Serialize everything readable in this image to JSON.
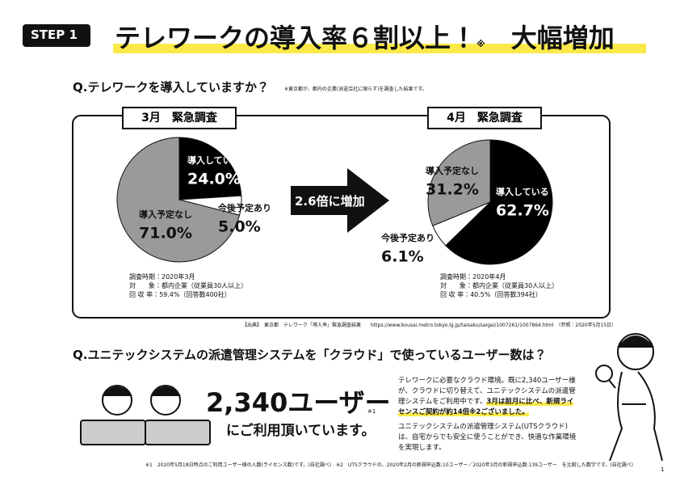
{
  "header": {
    "step": "STEP 1",
    "title": "テレワークの導入率６割以上！",
    "title_note": "※",
    "title_suffix": "大幅増加"
  },
  "q1": {
    "question": "Q.テレワークを導入していますか？",
    "note": "※東京都が、都内の企業(派遣会社に限らず)を調査した結果です。",
    "arrow": "2.6倍に増加",
    "survey": [
      [
        "調査時期：2020年3月",
        "対　　象：都内企業（従業員30人以上）",
        "回 収 率：59.4%（回答数400社）"
      ],
      [
        "調査時期：2020年4月",
        "対　　象：都内企業（従業員30人以上）",
        "回 収 率：40.5%（回答数394社）"
      ]
    ],
    "source": "【出典】　東京都　テレワーク「導入率」緊急調査結果　　https://www.bousai.metro.tokyo.lg.jp/taisaku/saigai/1007261/1007864.html　（参照：2020年5月15日）"
  },
  "chart_data": [
    {
      "type": "pie",
      "title": "3月　緊急調査",
      "categories": [
        "導入している",
        "今後予定あり",
        "導入予定なし"
      ],
      "values": [
        24.0,
        5.0,
        71.0
      ],
      "value_labels": [
        "24.0%",
        "5.0%",
        "71.0%"
      ],
      "colors": [
        "#000000",
        "#ffffff",
        "#9a9a9a"
      ]
    },
    {
      "type": "pie",
      "title": "4月　緊急調査",
      "categories": [
        "導入している",
        "今後予定あり",
        "導入予定なし"
      ],
      "values": [
        62.7,
        6.1,
        31.2
      ],
      "value_labels": [
        "62.7%",
        "6.1%",
        "31.2%"
      ],
      "colors": [
        "#000000",
        "#ffffff",
        "#9a9a9a"
      ]
    }
  ],
  "q2": {
    "question": "Q.ユニテックシステムの派遣管理システムを「クラウド」で使っているユーザー数は？",
    "users": "2,340ユーザー",
    "users_note": "※1",
    "users_suffix": "にご利用頂いています。",
    "paragraph1": "テレワークに必要なクラウド環境。既に2,340ユーザー様が、クラウドに切り替えて、ユニテックシステムの派遣管理システムをご利用中です。",
    "paragraph1_highlight": "3月は前月に比べ、新規ライセンスご契約が約14倍※2ございました。",
    "paragraph2": "ユニテックシステムの派遣管理システム(UTSクラウド)は、自宅からでも安全に使うことができ、快適な作業環境を実現します。"
  },
  "footnote": "※1　2020年5月18日時点のご利用ユーザー様の人数(ライセンス数)です。(自社調べ)　※2　UTSクラウドの、2020年2月の新規申込数:10ユーザー／2020年3月の新規申込数:139ユーザー　を比較した数字です。(自社調べ)",
  "page_number": "1"
}
